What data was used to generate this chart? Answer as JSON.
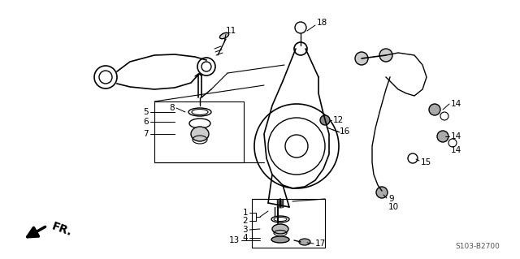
{
  "bg_color": "#ffffff",
  "diagram_code": "S103-B2700",
  "fr_label": "FR.",
  "black": "#000000",
  "dgray": "#555555",
  "label_fontsize": 7.5,
  "code_fontsize": 6.5,
  "fr_fontsize": 10
}
